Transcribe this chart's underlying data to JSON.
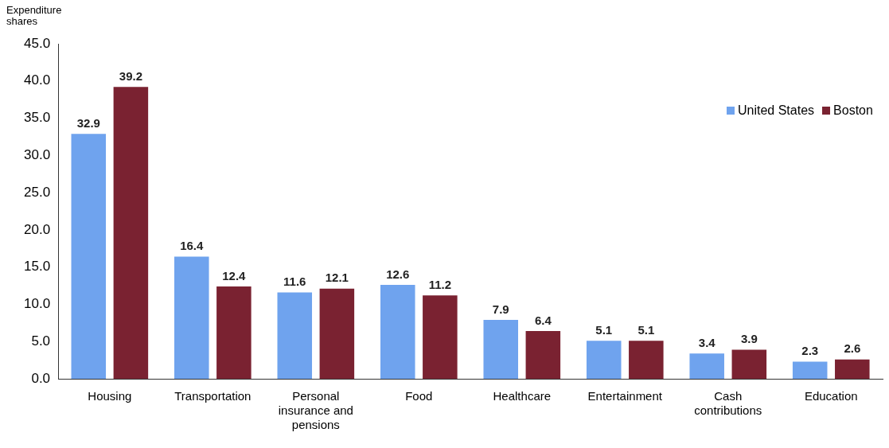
{
  "chart_data": {
    "type": "bar",
    "ylabel": "Expenditure shares",
    "categories": [
      "Housing",
      "Transportation",
      "Personal insurance and pensions",
      "Food",
      "Healthcare",
      "Entertainment",
      "Cash contributions",
      "Education"
    ],
    "series": [
      {
        "name": "United States",
        "color": "#6fa3ee",
        "values": [
          32.9,
          16.4,
          11.6,
          12.6,
          7.9,
          5.1,
          3.4,
          2.3
        ]
      },
      {
        "name": "Boston",
        "color": "#7a2231",
        "values": [
          39.2,
          12.4,
          12.1,
          11.2,
          6.4,
          5.1,
          3.9,
          2.6
        ]
      }
    ],
    "ylim": [
      0,
      45
    ],
    "yticks": [
      {
        "value": 0,
        "label": "0.0"
      },
      {
        "value": 5,
        "label": "5.0"
      },
      {
        "value": 10,
        "label": "10.0"
      },
      {
        "value": 15,
        "label": "15.0"
      },
      {
        "value": 20,
        "label": "20.0"
      },
      {
        "value": 25,
        "label": "25.0"
      },
      {
        "value": 30,
        "label": "30.0"
      },
      {
        "value": 35,
        "label": "35.0"
      },
      {
        "value": 40,
        "label": "40.0"
      },
      {
        "value": 45,
        "label": "45.0"
      }
    ],
    "grid": false,
    "legend": "top right",
    "data_labels": true
  }
}
